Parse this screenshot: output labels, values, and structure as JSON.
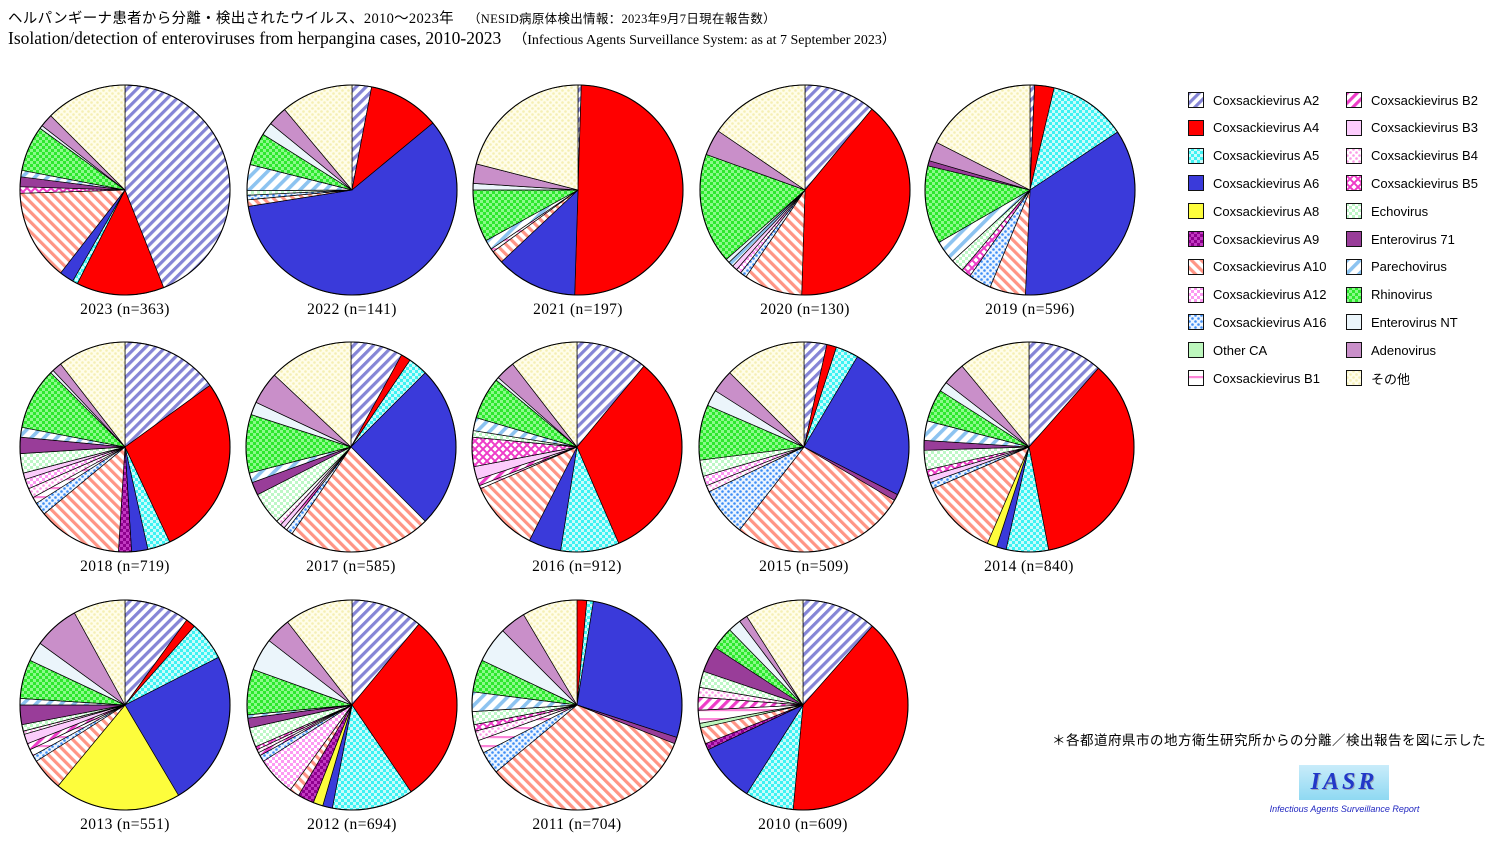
{
  "header": {
    "title_ja": "ヘルパンギーナ患者から分離・検出されたウイルス、2010〜2023年",
    "title_ja_note": "（NESID病原体検出情報：2023年9月7日現在報告数）",
    "title_en": "Isolation/detection of enteroviruses from herpangina cases, 2010-2023",
    "title_en_note": "（Infectious Agents Surveillance System: as at 7 September 2023）"
  },
  "footer": {
    "note": "＊各都道府県市の地方衛生研究所からの分離／検出報告を図に示した",
    "logo_text": "IASR",
    "logo_subtitle": "Infectious Agents Surveillance Report"
  },
  "viruses": [
    {
      "id": "a2",
      "label": "Coxsackievirus A2",
      "swatch": {
        "style": "stripe45",
        "bg": "#ffffff",
        "fg": "#8585d6"
      }
    },
    {
      "id": "a4",
      "label": "Coxsackievirus A4",
      "swatch": {
        "style": "solid",
        "bg": "#ff0000",
        "fg": "#ff0000"
      }
    },
    {
      "id": "a5",
      "label": "Coxsackievirus A5",
      "swatch": {
        "style": "checker",
        "bg": "#3ef2f2",
        "fg": "#c9fcfc"
      }
    },
    {
      "id": "a6",
      "label": "Coxsackievirus A6",
      "swatch": {
        "style": "solid",
        "bg": "#3a3ada",
        "fg": "#3a3ada"
      }
    },
    {
      "id": "a8",
      "label": "Coxsackievirus A8",
      "swatch": {
        "style": "solid",
        "bg": "#fdfd3c",
        "fg": "#fdfd3c"
      }
    },
    {
      "id": "a9",
      "label": "Coxsackievirus A9",
      "swatch": {
        "style": "checker",
        "bg": "#8e008e",
        "fg": "#c23ac2"
      }
    },
    {
      "id": "a10",
      "label": "Coxsackievirus A10",
      "swatch": {
        "style": "stripe135",
        "bg": "#ffffff",
        "fg": "#ff9585"
      }
    },
    {
      "id": "a12",
      "label": "Coxsackievirus A12",
      "swatch": {
        "style": "checker",
        "bg": "#ffffff",
        "fg": "#fc9af2"
      }
    },
    {
      "id": "a16",
      "label": "Coxsackievirus A16",
      "swatch": {
        "style": "dots",
        "bg": "#eaf4ff",
        "fg": "#3f8ef5"
      }
    },
    {
      "id": "otherca",
      "label": "Other CA",
      "swatch": {
        "style": "solid",
        "bg": "#bdf7bd",
        "fg": "#bdf7bd"
      }
    },
    {
      "id": "b1",
      "label": "Coxsackievirus B1",
      "swatch": {
        "style": "hline",
        "bg": "#ffffff",
        "fg": "#fc86d8"
      }
    },
    {
      "id": "b2",
      "label": "Coxsackievirus B2",
      "swatch": {
        "style": "stripe45",
        "bg": "#ffffff",
        "fg": "#ee3cc8"
      }
    },
    {
      "id": "b3",
      "label": "Coxsackievirus B3",
      "swatch": {
        "style": "solid",
        "bg": "#fcccfc",
        "fg": "#fcccfc"
      }
    },
    {
      "id": "b4",
      "label": "Coxsackievirus B4",
      "swatch": {
        "style": "dots",
        "bg": "#ffffff",
        "fg": "#fc9ae6"
      }
    },
    {
      "id": "b5",
      "label": "Coxsackievirus B5",
      "swatch": {
        "style": "crosshatch",
        "bg": "#ffffff",
        "fg": "#ee3cc8"
      }
    },
    {
      "id": "echo",
      "label": "Echovirus",
      "swatch": {
        "style": "checker",
        "bg": "#ffffff",
        "fg": "#bdf7c6"
      }
    },
    {
      "id": "ev71",
      "label": "Enterovirus 71",
      "swatch": {
        "style": "solid",
        "bg": "#993d99",
        "fg": "#993d99"
      }
    },
    {
      "id": "parecho",
      "label": "Parechovirus",
      "swatch": {
        "style": "stripe45w",
        "bg": "#ffffff",
        "fg": "#8cc3f0"
      }
    },
    {
      "id": "rhino",
      "label": "Rhinovirus",
      "swatch": {
        "style": "checker",
        "bg": "#2ee82e",
        "fg": "#8cfa8c"
      }
    },
    {
      "id": "nt",
      "label": "Enterovirus NT",
      "swatch": {
        "style": "solid",
        "bg": "#ebf5fb",
        "fg": "#ebf5fb"
      }
    },
    {
      "id": "adeno",
      "label": "Adenovirus",
      "swatch": {
        "style": "solid",
        "bg": "#c98fc9",
        "fg": "#c98fc9"
      }
    },
    {
      "id": "sonota",
      "label": "その他",
      "swatch": {
        "style": "dots",
        "bg": "#fffde9",
        "fg": "#f5efb4"
      }
    }
  ],
  "legend": {
    "columns": [
      [
        "a2",
        "a4",
        "a5",
        "a6",
        "a8",
        "a9",
        "a10",
        "a12",
        "a16",
        "otherca",
        "b1"
      ],
      [
        "b2",
        "b3",
        "b4",
        "b5",
        "echo",
        "ev71",
        "parecho",
        "rhino",
        "nt",
        "adeno",
        "sonota"
      ]
    ]
  },
  "chart_data": [
    {
      "type": "pie",
      "title": "2023",
      "n": 363,
      "values_are": "percent_estimated_from_figure",
      "slices": [
        {
          "v": "a2",
          "p": 44
        },
        {
          "v": "a4",
          "p": 13.5
        },
        {
          "v": "a5",
          "p": 0.8
        },
        {
          "v": "a6",
          "p": 2.2
        },
        {
          "v": "a10",
          "p": 14
        },
        {
          "v": "b5",
          "p": 1
        },
        {
          "v": "ev71",
          "p": 1.5
        },
        {
          "v": "parecho",
          "p": 1
        },
        {
          "v": "rhino",
          "p": 7
        },
        {
          "v": "nt",
          "p": 0.5
        },
        {
          "v": "adeno",
          "p": 2
        },
        {
          "v": "sonota",
          "p": 12.5
        }
      ]
    },
    {
      "type": "pie",
      "title": "2022",
      "n": 141,
      "values_are": "percent_estimated_from_figure",
      "slices": [
        {
          "v": "a2",
          "p": 3
        },
        {
          "v": "a4",
          "p": 11
        },
        {
          "v": "a6",
          "p": 58.5
        },
        {
          "v": "a10",
          "p": 1
        },
        {
          "v": "a16",
          "p": 0.7
        },
        {
          "v": "echo",
          "p": 0.7
        },
        {
          "v": "parecho",
          "p": 4
        },
        {
          "v": "rhino",
          "p": 5
        },
        {
          "v": "nt",
          "p": 2
        },
        {
          "v": "adeno",
          "p": 3
        },
        {
          "v": "sonota",
          "p": 11.1
        }
      ]
    },
    {
      "type": "pie",
      "title": "2021",
      "n": 197,
      "values_are": "percent_estimated_from_figure",
      "slices": [
        {
          "v": "a2",
          "p": 0.5
        },
        {
          "v": "a4",
          "p": 50
        },
        {
          "v": "a6",
          "p": 12.5
        },
        {
          "v": "a10",
          "p": 2
        },
        {
          "v": "b1",
          "p": 0.5
        },
        {
          "v": "parecho",
          "p": 1.5
        },
        {
          "v": "rhino",
          "p": 8
        },
        {
          "v": "nt",
          "p": 1
        },
        {
          "v": "adeno",
          "p": 3
        },
        {
          "v": "sonota",
          "p": 21
        }
      ]
    },
    {
      "type": "pie",
      "title": "2020",
      "n": 130,
      "values_are": "percent_estimated_from_figure",
      "slices": [
        {
          "v": "a2",
          "p": 11
        },
        {
          "v": "a4",
          "p": 39.5
        },
        {
          "v": "a10",
          "p": 9
        },
        {
          "v": "a16",
          "p": 1
        },
        {
          "v": "a12",
          "p": 0.8
        },
        {
          "v": "b3",
          "p": 0.8
        },
        {
          "v": "parecho",
          "p": 0.8
        },
        {
          "v": "nt",
          "p": 0.6
        },
        {
          "v": "rhino",
          "p": 17
        },
        {
          "v": "adeno",
          "p": 4
        },
        {
          "v": "sonota",
          "p": 15.5
        }
      ]
    },
    {
      "type": "pie",
      "title": "2019",
      "n": 596,
      "values_are": "percent_estimated_from_figure",
      "slices": [
        {
          "v": "a2",
          "p": 0.7
        },
        {
          "v": "a4",
          "p": 3
        },
        {
          "v": "a5",
          "p": 12
        },
        {
          "v": "a6",
          "p": 35
        },
        {
          "v": "a10",
          "p": 5.5
        },
        {
          "v": "a16",
          "p": 3.5
        },
        {
          "v": "b5",
          "p": 1.5
        },
        {
          "v": "echo",
          "p": 2
        },
        {
          "v": "parecho",
          "p": 3.5
        },
        {
          "v": "rhino",
          "p": 12
        },
        {
          "v": "ev71",
          "p": 0.8
        },
        {
          "v": "adeno",
          "p": 3
        },
        {
          "v": "sonota",
          "p": 17.5
        }
      ]
    },
    {
      "type": "pie",
      "title": "2018",
      "n": 719,
      "values_are": "percent_estimated_from_figure",
      "slices": [
        {
          "v": "a2",
          "p": 15
        },
        {
          "v": "a4",
          "p": 28
        },
        {
          "v": "a5",
          "p": 3.5
        },
        {
          "v": "a6",
          "p": 2.5
        },
        {
          "v": "a9",
          "p": 2
        },
        {
          "v": "a10",
          "p": 13
        },
        {
          "v": "a16",
          "p": 2
        },
        {
          "v": "b1",
          "p": 1
        },
        {
          "v": "b4",
          "p": 1.5
        },
        {
          "v": "a12",
          "p": 1.5
        },
        {
          "v": "b3",
          "p": 1
        },
        {
          "v": "echo",
          "p": 3
        },
        {
          "v": "ev71",
          "p": 2.5
        },
        {
          "v": "parecho",
          "p": 1.5
        },
        {
          "v": "rhino",
          "p": 9.5
        },
        {
          "v": "nt",
          "p": 0.5
        },
        {
          "v": "adeno",
          "p": 1.5
        },
        {
          "v": "sonota",
          "p": 10.5
        }
      ]
    },
    {
      "type": "pie",
      "title": "2017",
      "n": 585,
      "values_are": "percent_estimated_from_figure",
      "slices": [
        {
          "v": "a2",
          "p": 8
        },
        {
          "v": "a4",
          "p": 1.5
        },
        {
          "v": "a5",
          "p": 3
        },
        {
          "v": "a6",
          "p": 25
        },
        {
          "v": "a10",
          "p": 22
        },
        {
          "v": "a16",
          "p": 1
        },
        {
          "v": "b2",
          "p": 0.5
        },
        {
          "v": "b3",
          "p": 0.7
        },
        {
          "v": "b4",
          "p": 0.8
        },
        {
          "v": "echo",
          "p": 5
        },
        {
          "v": "ev71",
          "p": 2
        },
        {
          "v": "parecho",
          "p": 1.5
        },
        {
          "v": "rhino",
          "p": 9
        },
        {
          "v": "nt",
          "p": 2
        },
        {
          "v": "adeno",
          "p": 5
        },
        {
          "v": "sonota",
          "p": 13
        }
      ]
    },
    {
      "type": "pie",
      "title": "2016",
      "n": 912,
      "values_are": "percent_estimated_from_figure",
      "slices": [
        {
          "v": "a2",
          "p": 11
        },
        {
          "v": "a4",
          "p": 32.5
        },
        {
          "v": "a5",
          "p": 9
        },
        {
          "v": "a6",
          "p": 5
        },
        {
          "v": "a10",
          "p": 11
        },
        {
          "v": "b1",
          "p": 0.5
        },
        {
          "v": "b2",
          "p": 1
        },
        {
          "v": "b3",
          "p": 2
        },
        {
          "v": "b5",
          "p": 4.5
        },
        {
          "v": "echo",
          "p": 1
        },
        {
          "v": "parecho",
          "p": 2
        },
        {
          "v": "rhino",
          "p": 6.5
        },
        {
          "v": "nt",
          "p": 0.5
        },
        {
          "v": "adeno",
          "p": 3
        },
        {
          "v": "sonota",
          "p": 10.5
        }
      ]
    },
    {
      "type": "pie",
      "title": "2015",
      "n": 509,
      "values_are": "percent_estimated_from_figure",
      "slices": [
        {
          "v": "a2",
          "p": 3.5
        },
        {
          "v": "a4",
          "p": 1.5
        },
        {
          "v": "a5",
          "p": 3.5
        },
        {
          "v": "a6",
          "p": 24
        },
        {
          "v": "ev71",
          "p": 1
        },
        {
          "v": "a10",
          "p": 27
        },
        {
          "v": "a16",
          "p": 7.5
        },
        {
          "v": "b4",
          "p": 1
        },
        {
          "v": "a12",
          "p": 1.5
        },
        {
          "v": "echo",
          "p": 2.5
        },
        {
          "v": "rhino",
          "p": 8.5
        },
        {
          "v": "nt",
          "p": 2.5
        },
        {
          "v": "adeno",
          "p": 3.5
        },
        {
          "v": "sonota",
          "p": 12.5
        }
      ]
    },
    {
      "type": "pie",
      "title": "2014",
      "n": 840,
      "values_are": "percent_estimated_from_figure",
      "slices": [
        {
          "v": "a2",
          "p": 11.5
        },
        {
          "v": "a4",
          "p": 35.5
        },
        {
          "v": "a5",
          "p": 6.5
        },
        {
          "v": "a6",
          "p": 1.5
        },
        {
          "v": "a8",
          "p": 1.5
        },
        {
          "v": "a10",
          "p": 12
        },
        {
          "v": "a16",
          "p": 1
        },
        {
          "v": "b3",
          "p": 1
        },
        {
          "v": "b5",
          "p": 1
        },
        {
          "v": "echo",
          "p": 3
        },
        {
          "v": "ev71",
          "p": 1.5
        },
        {
          "v": "parecho",
          "p": 3
        },
        {
          "v": "rhino",
          "p": 5
        },
        {
          "v": "nt",
          "p": 1.5
        },
        {
          "v": "adeno",
          "p": 3.5
        },
        {
          "v": "sonota",
          "p": 11
        }
      ]
    },
    {
      "type": "pie",
      "title": "2013",
      "n": 551,
      "values_are": "percent_estimated_from_figure",
      "slices": [
        {
          "v": "a2",
          "p": 10
        },
        {
          "v": "a4",
          "p": 1.5
        },
        {
          "v": "a5",
          "p": 6
        },
        {
          "v": "a6",
          "p": 24
        },
        {
          "v": "a8",
          "p": 19.5
        },
        {
          "v": "a10",
          "p": 5
        },
        {
          "v": "a16",
          "p": 1
        },
        {
          "v": "b1",
          "p": 1
        },
        {
          "v": "b2",
          "p": 1
        },
        {
          "v": "b3",
          "p": 1.5
        },
        {
          "v": "b4",
          "p": 0.5
        },
        {
          "v": "echo",
          "p": 1
        },
        {
          "v": "ev71",
          "p": 3
        },
        {
          "v": "parecho",
          "p": 1
        },
        {
          "v": "rhino",
          "p": 6
        },
        {
          "v": "nt",
          "p": 3
        },
        {
          "v": "adeno",
          "p": 7
        },
        {
          "v": "sonota",
          "p": 8
        }
      ]
    },
    {
      "type": "pie",
      "title": "2012",
      "n": 694,
      "values_are": "percent_estimated_from_figure",
      "slices": [
        {
          "v": "a2",
          "p": 11
        },
        {
          "v": "a4",
          "p": 29.5
        },
        {
          "v": "a5",
          "p": 12.5
        },
        {
          "v": "a6",
          "p": 1.5
        },
        {
          "v": "a8",
          "p": 1.5
        },
        {
          "v": "a9",
          "p": 2.5
        },
        {
          "v": "a10",
          "p": 1.5
        },
        {
          "v": "a12",
          "p": 6
        },
        {
          "v": "a16",
          "p": 1
        },
        {
          "v": "b2",
          "p": 0.5
        },
        {
          "v": "b4",
          "p": 0.5
        },
        {
          "v": "b5",
          "p": 0.5
        },
        {
          "v": "echo",
          "p": 3
        },
        {
          "v": "ev71",
          "p": 1.5
        },
        {
          "v": "parecho",
          "p": 0.5
        },
        {
          "v": "rhino",
          "p": 7
        },
        {
          "v": "nt",
          "p": 5
        },
        {
          "v": "adeno",
          "p": 4
        },
        {
          "v": "sonota",
          "p": 10.5
        }
      ]
    },
    {
      "type": "pie",
      "title": "2011",
      "n": 704,
      "values_are": "percent_estimated_from_figure",
      "slices": [
        {
          "v": "a4",
          "p": 1.5
        },
        {
          "v": "a5",
          "p": 1
        },
        {
          "v": "a6",
          "p": 27.5
        },
        {
          "v": "ev71",
          "p": 1
        },
        {
          "v": "a10",
          "p": 33
        },
        {
          "v": "a16",
          "p": 3.5
        },
        {
          "v": "b1",
          "p": 2
        },
        {
          "v": "b4",
          "p": 1.5
        },
        {
          "v": "b5",
          "p": 1
        },
        {
          "v": "echo",
          "p": 2
        },
        {
          "v": "parecho",
          "p": 3
        },
        {
          "v": "rhino",
          "p": 5
        },
        {
          "v": "nt",
          "p": 5.5
        },
        {
          "v": "adeno",
          "p": 4
        },
        {
          "v": "sonota",
          "p": 8.5
        }
      ]
    },
    {
      "type": "pie",
      "title": "2010",
      "n": 609,
      "values_are": "percent_estimated_from_figure",
      "slices": [
        {
          "v": "a2",
          "p": 11.5
        },
        {
          "v": "a4",
          "p": 40
        },
        {
          "v": "a5",
          "p": 7.5
        },
        {
          "v": "a6",
          "p": 9
        },
        {
          "v": "a9",
          "p": 1
        },
        {
          "v": "a10",
          "p": 2.5
        },
        {
          "v": "otherca",
          "p": 0.7
        },
        {
          "v": "b1",
          "p": 2
        },
        {
          "v": "b2",
          "p": 2
        },
        {
          "v": "b4",
          "p": 1.5
        },
        {
          "v": "echo",
          "p": 2.5
        },
        {
          "v": "ev71",
          "p": 4
        },
        {
          "v": "rhino",
          "p": 3.5
        },
        {
          "v": "nt",
          "p": 2
        },
        {
          "v": "adeno",
          "p": 1.3
        },
        {
          "v": "sonota",
          "p": 9
        }
      ]
    }
  ]
}
